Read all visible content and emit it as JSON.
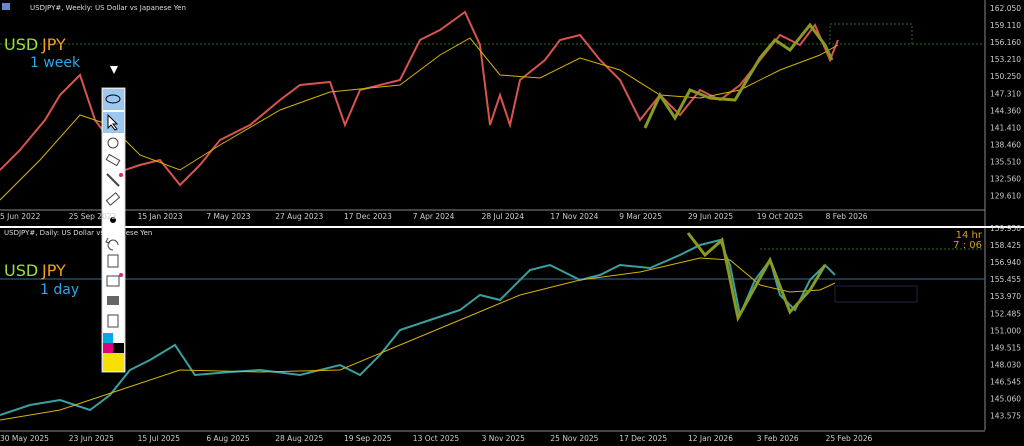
{
  "weekly": {
    "header": "USDJPY#, Weekly:  US Dollar vs Japanese Yen",
    "price_labels": [
      "162.050",
      "159.110",
      "156.160",
      "153.210",
      "150.250",
      "147.310",
      "144.360",
      "141.410",
      "138.460",
      "135.510",
      "132.560",
      "129.610"
    ],
    "date_labels": [
      "5 Jun 2022",
      "25 Sep 2022",
      "15 Jan 2023",
      "7 May 2023",
      "27 Aug 2023",
      "17 Dec 2023",
      "7 Apr 2024",
      "28 Jul 2024",
      "17 Nov 2024",
      "9 Mar 2025",
      "29 Jun 2025",
      "19 Oct 2025",
      "8 Feb 2026"
    ],
    "overlay": {
      "base": "USD",
      "quote": "JPY",
      "timeframe": "1 week"
    }
  },
  "daily": {
    "header": "USDJPY#, Daily:  US Dollar vs Japanese Yen",
    "price_labels": [
      "159.950",
      "158.425",
      "156.940",
      "155.455",
      "153.970",
      "152.485",
      "151.000",
      "149.515",
      "148.030",
      "146.545",
      "145.060",
      "143.575"
    ],
    "date_labels": [
      "30 May 2025",
      "23 Jun 2025",
      "15 Jul 2025",
      "6 Aug 2025",
      "28 Aug 2025",
      "19 Sep 2025",
      "13 Oct 2025",
      "3 Nov 2025",
      "25 Nov 2025",
      "17 Dec 2025",
      "12 Jan 2026",
      "3 Feb 2026",
      "25 Feb 2026"
    ],
    "overlay": {
      "base": "USD",
      "quote": "JPY",
      "timeframe": "1 day"
    },
    "timer": {
      "hours": "14 hr",
      "minutes": "7 : 06"
    }
  }
}
